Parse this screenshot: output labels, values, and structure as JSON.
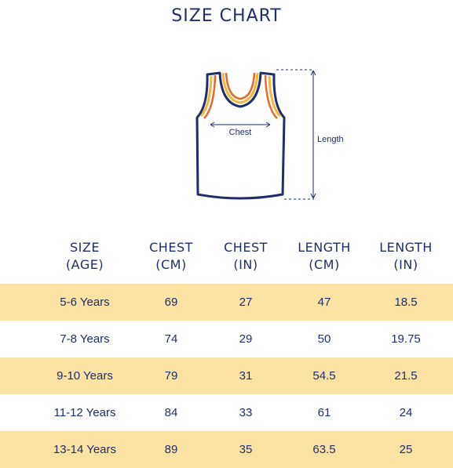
{
  "title": "SIZE CHART",
  "diagram": {
    "chest_label": "Chest",
    "length_label": "Length",
    "garment_icon": "tank-top-icon",
    "colors": {
      "outline": "#1f2d6b",
      "trim_orange": "#e8692a",
      "trim_yellow": "#f3b73a"
    }
  },
  "table": {
    "headers": [
      {
        "line1": "SIZE",
        "line2": "(AGE)"
      },
      {
        "line1": "CHEST",
        "line2": "(CM)"
      },
      {
        "line1": "CHEST",
        "line2": "(IN)"
      },
      {
        "line1": "LENGTH",
        "line2": "(CM)"
      },
      {
        "line1": "LENGTH",
        "line2": "(IN)"
      }
    ],
    "rows": [
      [
        "5-6 Years",
        "69",
        "27",
        "47",
        "18.5"
      ],
      [
        "7-8 Years",
        "74",
        "29",
        "50",
        "19.75"
      ],
      [
        "9-10 Years",
        "79",
        "31",
        "54.5",
        "21.5"
      ],
      [
        "11-12 Years",
        "84",
        "33",
        "61",
        "24"
      ],
      [
        "13-14 Years",
        "89",
        "35",
        "63.5",
        "25"
      ]
    ],
    "colors": {
      "shade": "#fce3a4",
      "text": "#1f2d6b"
    }
  }
}
